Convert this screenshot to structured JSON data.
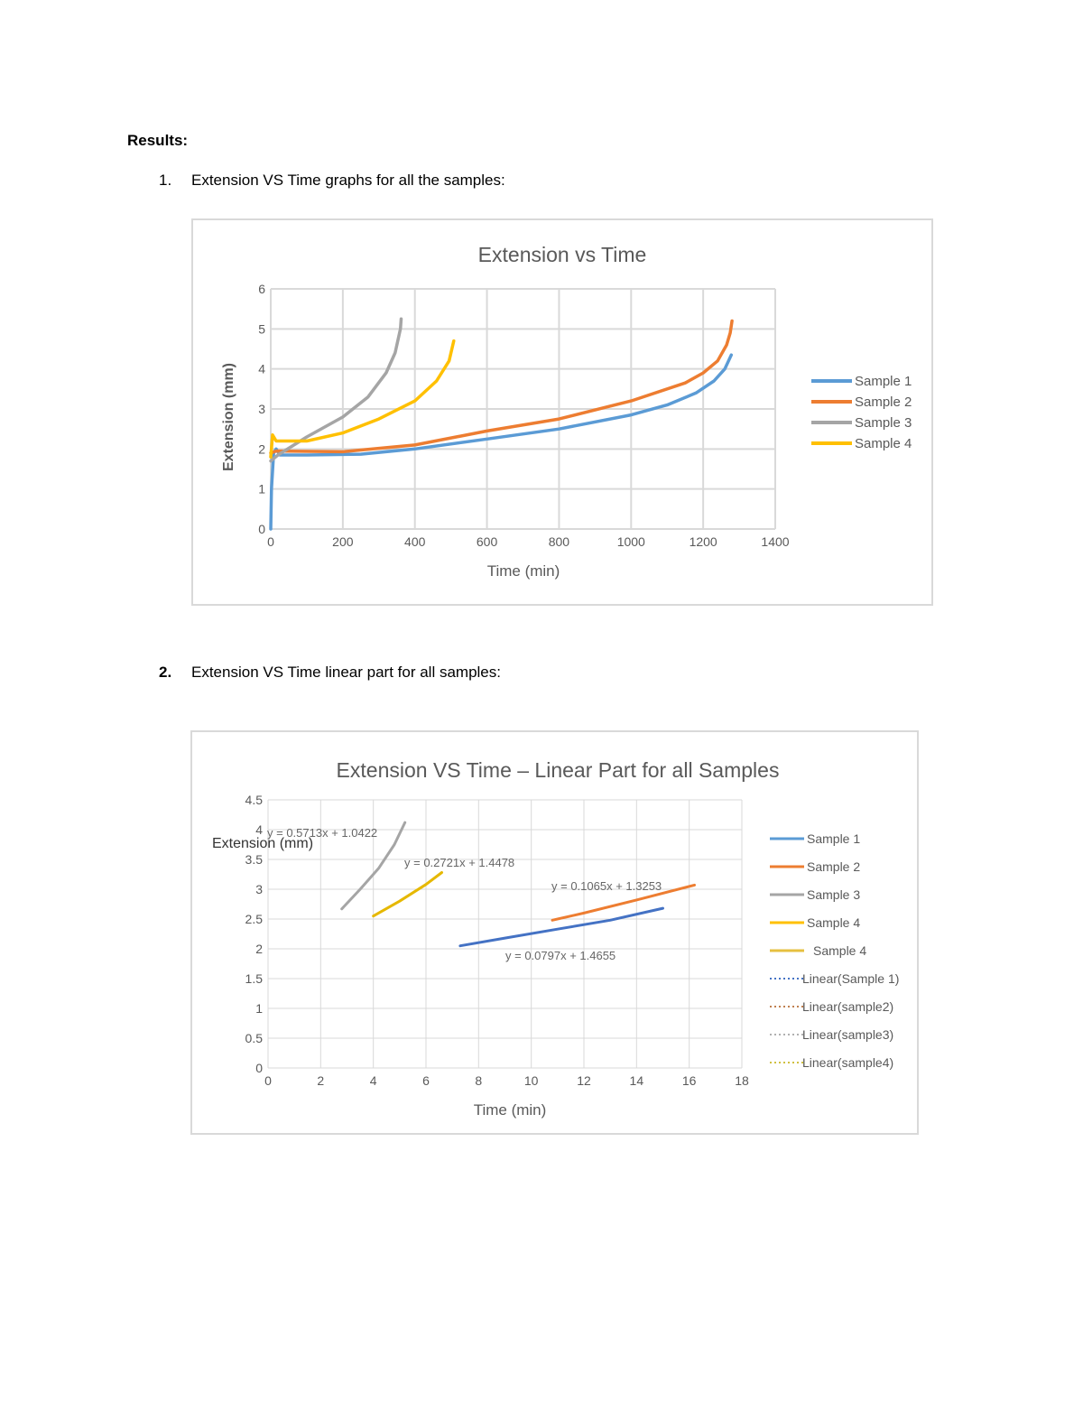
{
  "heading": "Results:",
  "items": [
    {
      "num": "1.",
      "text": "Extension VS Time graphs for all the samples:"
    },
    {
      "num": "2.",
      "text": "Extension VS Time linear part for all samples:"
    }
  ],
  "chart_data": [
    {
      "type": "line",
      "title": "Extension vs Time",
      "xlabel": "Time (min)",
      "ylabel": "Extension (mm)",
      "xlim": [
        0,
        1400
      ],
      "ylim": [
        0,
        6
      ],
      "xticks": [
        0,
        200,
        400,
        600,
        800,
        1000,
        1200,
        1400
      ],
      "yticks": [
        0,
        1,
        2,
        3,
        4,
        5,
        6
      ],
      "grid": true,
      "legend": "right",
      "series": [
        {
          "name": "Sample 1",
          "color": "#5b9bd5",
          "x": [
            0,
            2,
            8,
            15,
            25,
            100,
            250,
            400,
            600,
            800,
            1000,
            1100,
            1180,
            1230,
            1260,
            1278
          ],
          "y": [
            0,
            1.0,
            1.9,
            2.0,
            1.85,
            1.85,
            1.87,
            2.0,
            2.25,
            2.5,
            2.85,
            3.1,
            3.4,
            3.7,
            4.0,
            4.35
          ]
        },
        {
          "name": "Sample 2",
          "color": "#ed7d31",
          "x": [
            0,
            15,
            200,
            400,
            600,
            800,
            1000,
            1150,
            1200,
            1240,
            1265,
            1275,
            1280
          ],
          "y": [
            1.9,
            1.95,
            1.93,
            2.1,
            2.45,
            2.75,
            3.2,
            3.65,
            3.9,
            4.2,
            4.6,
            4.9,
            5.2
          ]
        },
        {
          "name": "Sample 3",
          "color": "#a5a5a5",
          "x": [
            0,
            20,
            100,
            200,
            270,
            320,
            345,
            360,
            362
          ],
          "y": [
            1.7,
            1.85,
            2.3,
            2.8,
            3.3,
            3.9,
            4.4,
            5.0,
            5.25
          ]
        },
        {
          "name": "Sample 4",
          "color": "#ffc000",
          "x": [
            0,
            5,
            15,
            100,
            200,
            300,
            400,
            460,
            495,
            508
          ],
          "y": [
            1.8,
            2.35,
            2.2,
            2.2,
            2.4,
            2.75,
            3.2,
            3.7,
            4.2,
            4.7
          ]
        }
      ]
    },
    {
      "type": "line",
      "title": "Extension VS Time – Linear Part for all Samples",
      "xlabel": "Time (min)",
      "ylabel": "Extension (mm)",
      "xlim": [
        0,
        18
      ],
      "ylim": [
        0,
        4.5
      ],
      "xticks": [
        0,
        2,
        4,
        6,
        8,
        10,
        12,
        14,
        16,
        18
      ],
      "yticks": [
        0,
        0.5,
        1,
        1.5,
        2,
        2.5,
        3,
        3.5,
        4,
        4.5
      ],
      "grid": true,
      "legend": "right",
      "series": [
        {
          "name": "Sample 1",
          "color": "#4472c4",
          "x": [
            7.3,
            9,
            11,
            13,
            15
          ],
          "y": [
            2.05,
            2.18,
            2.33,
            2.48,
            2.68
          ]
        },
        {
          "name": "Sample 2",
          "color": "#ed7d31",
          "x": [
            10.8,
            12,
            14,
            16.2
          ],
          "y": [
            2.48,
            2.6,
            2.82,
            3.07
          ]
        },
        {
          "name": "Sample 3",
          "color": "#a5a5a5",
          "x": [
            2.8,
            3.5,
            4.2,
            4.8,
            5.2
          ],
          "y": [
            2.67,
            3.0,
            3.35,
            3.75,
            4.12
          ]
        },
        {
          "name": "Sample 4",
          "color": "#e6b800",
          "x": [
            4,
            5,
            6,
            6.6
          ],
          "y": [
            2.55,
            2.8,
            3.08,
            3.28
          ]
        }
      ],
      "trendlines": [
        {
          "equation": "y = 0.0797x + 1.4655"
        },
        {
          "equation": "y = 0.1065x + 1.3253"
        },
        {
          "equation": "y = 0.5713x + 1.0422"
        },
        {
          "equation": "y = 0.2721x + 1.4478"
        }
      ],
      "legend_entries": [
        {
          "label": "Sample 1",
          "color": "#5b9bd5",
          "style": "solid"
        },
        {
          "label": "Sample 2",
          "color": "#ed7d31",
          "style": "solid"
        },
        {
          "label": "Sample 3",
          "color": "#a5a5a5",
          "style": "solid"
        },
        {
          "label": "Sample 4",
          "color": "#ffc000",
          "style": "solid"
        },
        {
          "label": "Sample 4",
          "color": "#e6c040",
          "style": "solid"
        },
        {
          "label": "Linear(Sample 1)",
          "color": "#4472c4",
          "style": "dotted"
        },
        {
          "label": "Linear(sample2)",
          "color": "#c08050",
          "style": "dotted"
        },
        {
          "label": "Linear(sample3)",
          "color": "#b0b0b0",
          "style": "dotted"
        },
        {
          "label": "Linear(sample4)",
          "color": "#d0c040",
          "style": "dotted"
        }
      ]
    }
  ]
}
